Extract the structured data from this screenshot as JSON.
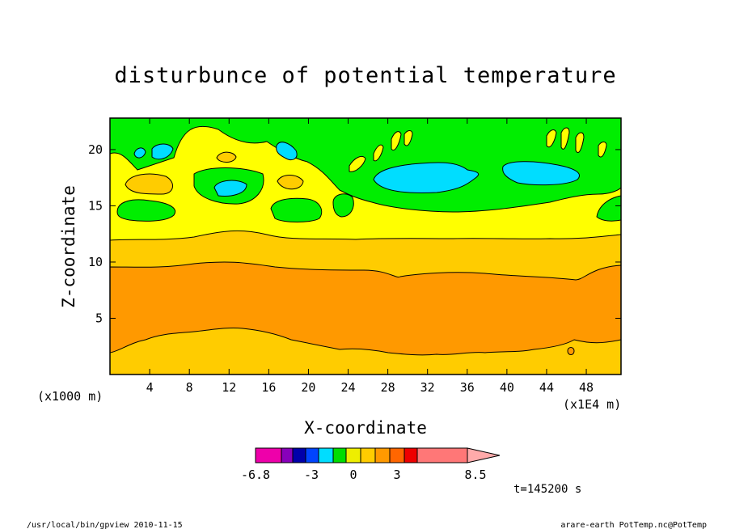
{
  "chart_data": {
    "type": "heatmap",
    "title": "disturbunce of potential temperature",
    "xlabel": "X-coordinate",
    "ylabel": "Z-coordinate",
    "x_unit": "(x1E4 m)",
    "y_unit": "(x1000 m)",
    "xlim": [
      0,
      51.5
    ],
    "ylim": [
      0,
      22.8
    ],
    "xticks": [
      4,
      8,
      12,
      16,
      20,
      24,
      28,
      32,
      36,
      40,
      44,
      48
    ],
    "yticks": [
      5,
      10,
      15,
      20
    ],
    "time_label": "t=145200 s",
    "colorbar": {
      "labels": [
        "-6.8",
        "-3",
        "0",
        "3",
        "8.5"
      ],
      "level_colors": [
        "#ee00aa",
        "#8800bb",
        "#0000aa",
        "#0044ff",
        "#00ddff",
        "#00dd00",
        "#eeee00",
        "#ffcc00",
        "#ff9900",
        "#ff6600",
        "#ee0000",
        "#ff7777",
        "#ffaaaa"
      ]
    },
    "layers": [
      {
        "z_range": [
          0,
          2.5
        ],
        "level": "1.5 to 3",
        "color": "#ffcc00"
      },
      {
        "z_range": [
          2.5,
          9.5
        ],
        "level": "3 to 4.5",
        "color": "#ff9900"
      },
      {
        "z_range": [
          9.5,
          12.2
        ],
        "level": "1.5 to 3",
        "color": "#ffcc00"
      },
      {
        "z_range": [
          12.2,
          14.5
        ],
        "level": "0 to 1.5",
        "color": "#ffff00"
      },
      {
        "z_range": [
          14.5,
          22.8
        ],
        "level": "-1.5 to 0",
        "color": "#00ee00"
      }
    ]
  },
  "footer": {
    "left": "/usr/local/bin/gpview  2010-11-15",
    "right": "arare-earth_PotTemp.nc@PotTemp"
  }
}
